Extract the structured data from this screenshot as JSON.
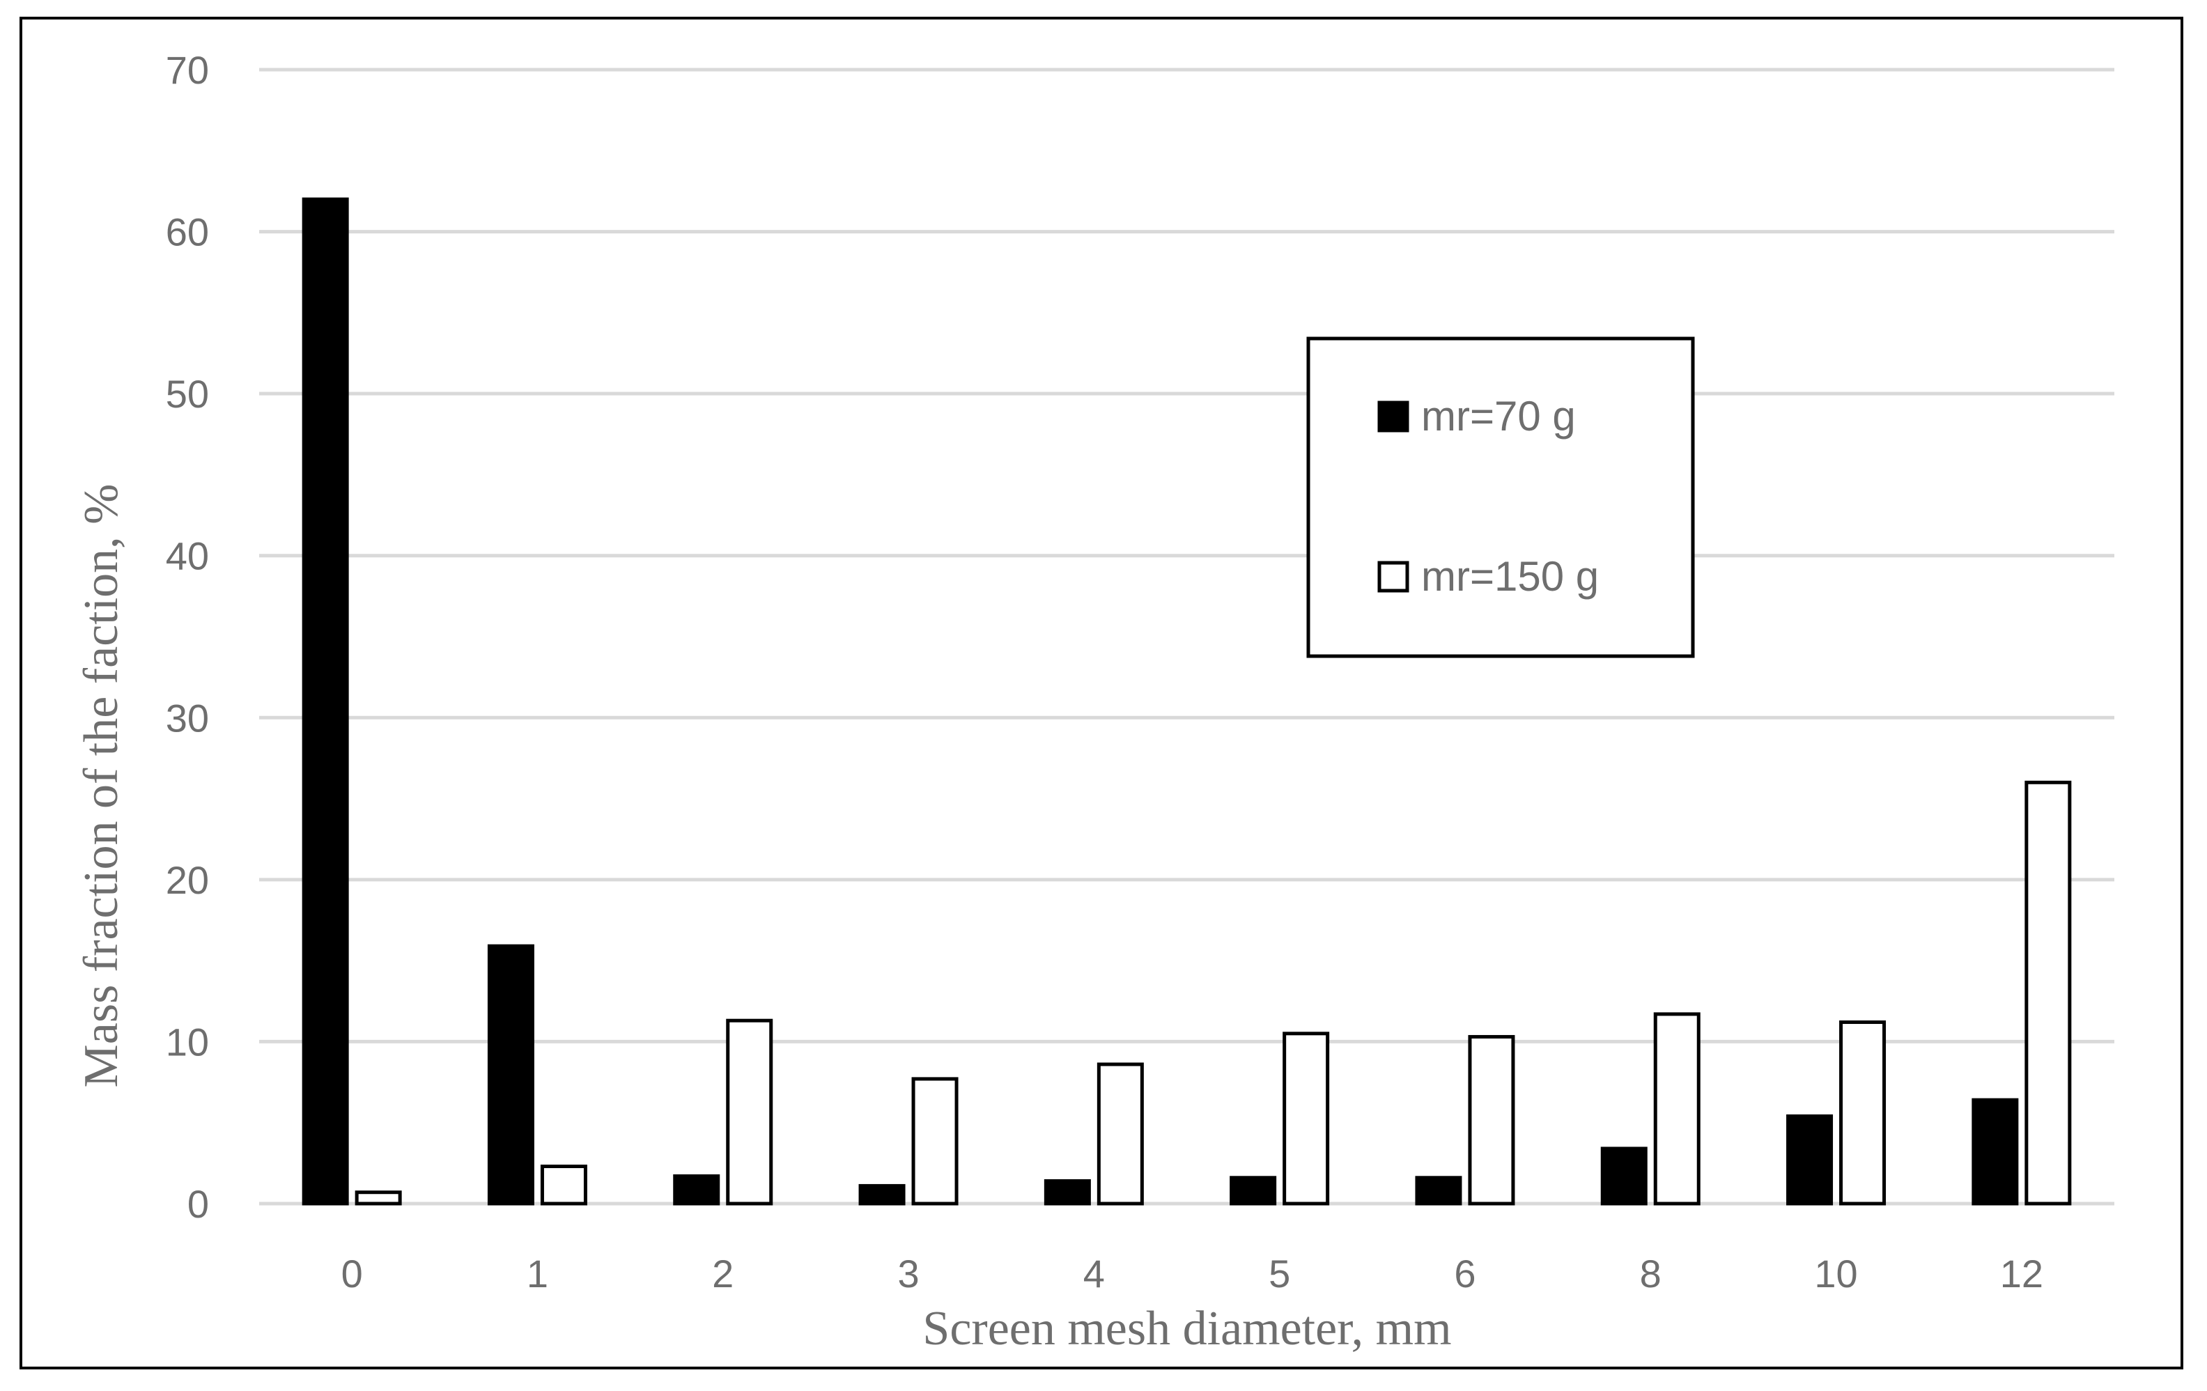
{
  "chart_data": {
    "type": "bar",
    "categories": [
      "0",
      "1",
      "2",
      "3",
      "4",
      "5",
      "6",
      "8",
      "10",
      "12"
    ],
    "series": [
      {
        "name": "mr=70 g",
        "color": "#000000",
        "values": [
          62,
          15.9,
          1.7,
          1.1,
          1.4,
          1.6,
          1.6,
          3.4,
          5.4,
          6.4
        ]
      },
      {
        "name": "mr=150 g",
        "color": "#ffffff",
        "values": [
          0.7,
          2.3,
          11.3,
          7.7,
          8.6,
          10.5,
          10.3,
          11.7,
          11.2,
          26.0
        ]
      }
    ],
    "xlabel": "Screen mesh diameter, mm",
    "ylabel": "Mass fraction of the faction, %",
    "ylim": [
      0,
      70
    ],
    "yticks": [
      0,
      10,
      20,
      30,
      40,
      50,
      60,
      70
    ],
    "grid": true,
    "legend_position": "upper-center-right"
  }
}
